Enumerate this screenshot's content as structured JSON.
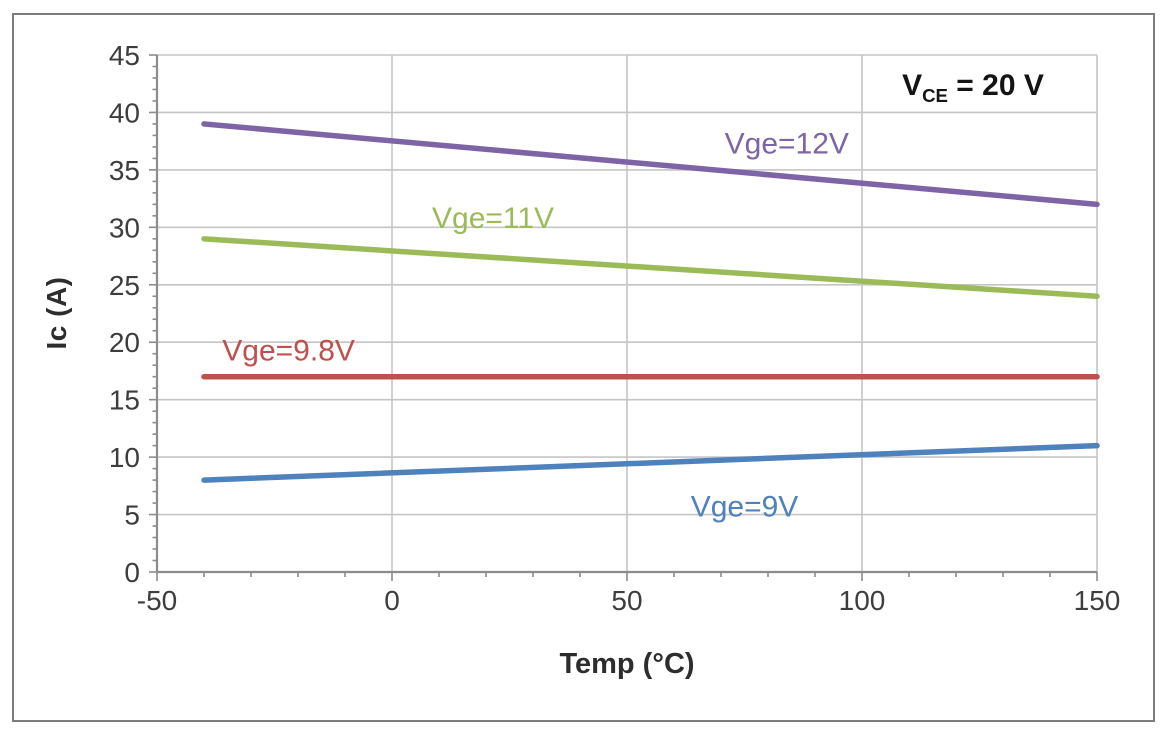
{
  "chart_data": {
    "type": "line",
    "title": "",
    "xlabel": "Temp (°C)",
    "ylabel": "Ic (A)",
    "annotation": {
      "prefix": "V",
      "sub": "CE",
      "suffix": " = 20 V"
    },
    "xlim": [
      -50,
      150
    ],
    "ylim": [
      0,
      45
    ],
    "x_major_ticks": [
      -50,
      0,
      50,
      100,
      150
    ],
    "y_major_ticks": [
      0,
      5,
      10,
      15,
      20,
      25,
      30,
      35,
      40,
      45
    ],
    "x_minor_step": 10,
    "y_minor_step": 1,
    "grid": {
      "horizontal": true,
      "vertical": true
    },
    "legend": "inline-labels",
    "series": [
      {
        "name": "Vge=12V",
        "color": "#7e63a6",
        "points": [
          {
            "x": -40,
            "y": 39
          },
          {
            "x": 150,
            "y": 32
          }
        ],
        "label_pos": {
          "x": 84,
          "y": 37.3
        }
      },
      {
        "name": "Vge=11V",
        "color": "#9bbb59",
        "points": [
          {
            "x": -40,
            "y": 29
          },
          {
            "x": 150,
            "y": 24
          }
        ],
        "label_pos": {
          "x": 21.5,
          "y": 30.8
        }
      },
      {
        "name": "Vge=9.8V",
        "color": "#c0504d",
        "points": [
          {
            "x": -40,
            "y": 17
          },
          {
            "x": 150,
            "y": 17
          }
        ],
        "label_pos": {
          "x": -22,
          "y": 19.3
        }
      },
      {
        "name": "Vge=9V",
        "color": "#4f81bd",
        "points": [
          {
            "x": -40,
            "y": 8
          },
          {
            "x": 150,
            "y": 11
          }
        ],
        "label_pos": {
          "x": 75,
          "y": 5.7
        }
      }
    ],
    "colors": {
      "axis": "#8c8c8c",
      "grid": "#c5c5c5",
      "tick_text": "#3d3d3d",
      "title_text": "#2d2d2d",
      "annotation_text": "#141414",
      "frame_border": "#7d7d7d",
      "background": "#ffffff"
    }
  }
}
